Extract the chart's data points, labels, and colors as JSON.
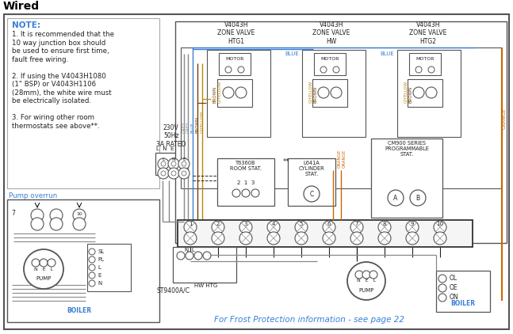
{
  "title": "Wired",
  "bg_color": "#ffffff",
  "note_header": "NOTE:",
  "note_body": [
    "1. It is recommended that the",
    "10 way junction box should",
    "be used to ensure first time,",
    "fault free wiring.",
    "",
    "2. If using the V4043H1080",
    "(1\" BSP) or V4043H1106",
    "(28mm), the white wire must",
    "be electrically isolated.",
    "",
    "3. For wiring other room",
    "thermostats see above**."
  ],
  "pump_overrun": "Pump overrun",
  "valve_labels": [
    "V4043H\nZONE VALVE\nHTG1",
    "V4043H\nZONE VALVE\nHW",
    "V4043H\nZONE VALVE\nHTG2"
  ],
  "supply_text": "230V\n50Hz\n3A RATED",
  "room_stat": "T6360B\nROOM STAT.",
  "cyl_stat": "L641A\nCYLINDER\nSTAT.",
  "cm900": "CM900 SERIES\nPROGRAMMABLE\nSTAT.",
  "st9400": "ST9400A/C",
  "hw_htg": "HW HTG",
  "boiler": "BOILER",
  "frost_text": "For Frost Protection information - see page 22",
  "wire_grey": "#888888",
  "wire_blue": "#3a7fd5",
  "wire_brown": "#7B3F00",
  "wire_gyellow": "#B8860B",
  "wire_orange": "#CC6600",
  "accent_blue": "#3a7fd5",
  "text_dark": "#222222",
  "label_orange": "#CC6600"
}
